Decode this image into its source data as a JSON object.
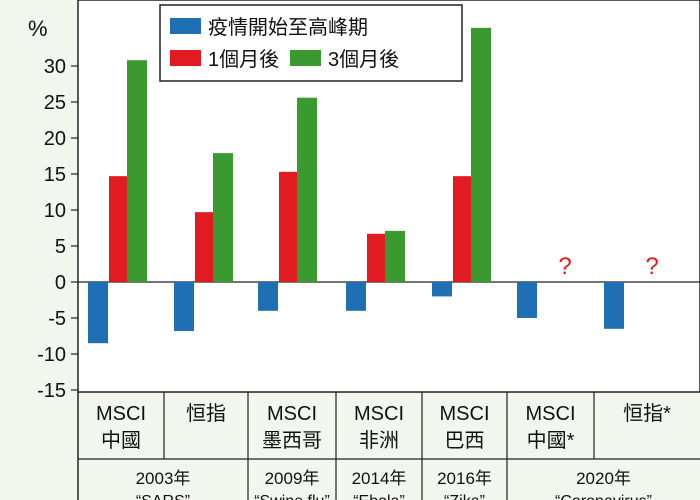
{
  "chart_data": {
    "type": "bar",
    "y_unit": "%",
    "ylim": [
      -15,
      35
    ],
    "y_ticks": [
      -15,
      -10,
      -5,
      0,
      5,
      10,
      15,
      20,
      25,
      30
    ],
    "grid": false,
    "legend_position": "top-center",
    "categories": [
      {
        "lines": [
          "MSCI",
          "中國"
        ]
      },
      {
        "lines": [
          "恒指"
        ]
      },
      {
        "lines": [
          "MSCI",
          "墨西哥"
        ]
      },
      {
        "lines": [
          "MSCI",
          "非洲"
        ]
      },
      {
        "lines": [
          "MSCI",
          "巴西"
        ]
      },
      {
        "lines": [
          "MSCI",
          "中國*"
        ]
      },
      {
        "lines": [
          "恒指*"
        ]
      }
    ],
    "groups": [
      {
        "label": "2003年",
        "sublabel": "“SARS”",
        "from": 0,
        "to": 1
      },
      {
        "label": "2009年",
        "sublabel": "“Swine flu”",
        "from": 2,
        "to": 2
      },
      {
        "label": "2014年",
        "sublabel": "“Ebola”",
        "from": 3,
        "to": 3
      },
      {
        "label": "2016年",
        "sublabel": "“Zika”",
        "from": 4,
        "to": 4
      },
      {
        "label": "2020年",
        "sublabel": "“Coronavirus”",
        "from": 5,
        "to": 6
      }
    ],
    "series": [
      {
        "name": "疫情開始至高峰期",
        "color": "#1f6fb5",
        "values": [
          -8.5,
          -6.8,
          -4.0,
          -4.0,
          -2.0,
          -5.0,
          -6.5
        ]
      },
      {
        "name": "1個月後",
        "color": "#e21b23",
        "values": [
          14.7,
          9.7,
          15.3,
          6.7,
          14.7,
          null,
          null
        ]
      },
      {
        "name": "3個月後",
        "color": "#3a9a2f",
        "values": [
          30.8,
          17.9,
          25.6,
          7.1,
          35.3,
          null,
          null
        ]
      }
    ],
    "unknown_marker": "?",
    "unknown_marker_color": "#e21b23"
  }
}
